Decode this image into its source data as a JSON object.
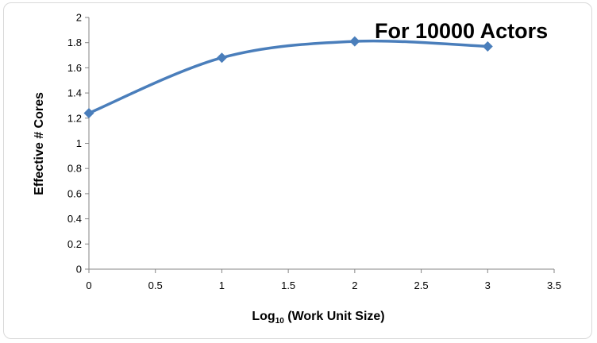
{
  "chart_data": {
    "type": "line",
    "title": "For 10000 Actors",
    "xlabel": {
      "main": "Log",
      "sub": "10",
      "rest": " (Work Unit Size)"
    },
    "ylabel": "Effective # Cores",
    "xlim": [
      0,
      3.5
    ],
    "ylim": [
      0,
      2
    ],
    "xticks": [
      0,
      0.5,
      1,
      1.5,
      2,
      2.5,
      3,
      3.5
    ],
    "xtick_labels": [
      "0",
      "0.5",
      "1",
      "1.5",
      "2",
      "2.5",
      "3",
      "3.5"
    ],
    "yticks": [
      0,
      0.2,
      0.4,
      0.6,
      0.8,
      1,
      1.2,
      1.4,
      1.6,
      1.8,
      2
    ],
    "ytick_labels": [
      "0",
      "0.2",
      "0.4",
      "0.6",
      "0.8",
      "1",
      "1.2",
      "1.4",
      "1.6",
      "1.8",
      "2"
    ],
    "grid": false,
    "smooth": true,
    "color": "#4a7ebb",
    "series": [
      {
        "x": [
          0,
          1,
          2,
          3
        ],
        "y": [
          1.24,
          1.68,
          1.81,
          1.77
        ]
      }
    ]
  }
}
